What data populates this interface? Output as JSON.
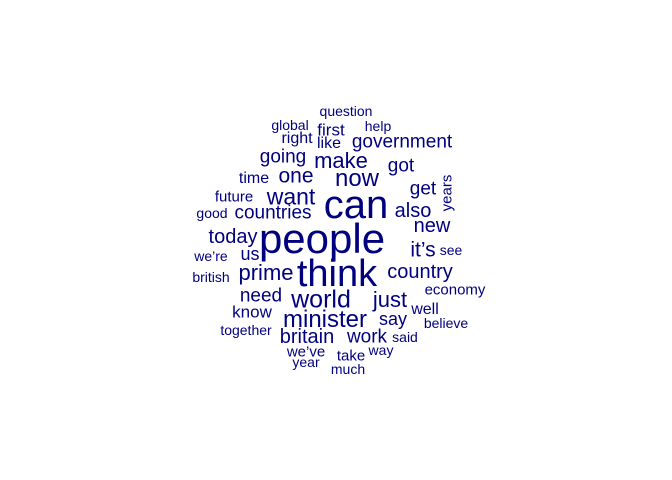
{
  "word_color": "#00007F",
  "words": [
    {
      "text": "question",
      "freq": 2
    },
    {
      "text": "global",
      "freq": 2
    },
    {
      "text": "help",
      "freq": 2
    },
    {
      "text": "first",
      "freq": 3
    },
    {
      "text": "right",
      "freq": 3
    },
    {
      "text": "like",
      "freq": 2
    },
    {
      "text": "government",
      "freq": 4
    },
    {
      "text": "going",
      "freq": 4
    },
    {
      "text": "make",
      "freq": 5
    },
    {
      "text": "got",
      "freq": 4
    },
    {
      "text": "one",
      "freq": 5
    },
    {
      "text": "now",
      "freq": 6
    },
    {
      "text": "time",
      "freq": 3
    },
    {
      "text": "want",
      "freq": 6
    },
    {
      "text": "can",
      "freq": 10
    },
    {
      "text": "get",
      "freq": 4
    },
    {
      "text": "years",
      "freq": 3
    },
    {
      "text": "future",
      "freq": 3
    },
    {
      "text": "also",
      "freq": 4
    },
    {
      "text": "good",
      "freq": 2
    },
    {
      "text": "countries",
      "freq": 4
    },
    {
      "text": "new",
      "freq": 4
    },
    {
      "text": "today",
      "freq": 4
    },
    {
      "text": "people",
      "freq": 12
    },
    {
      "text": "it’s",
      "freq": 5
    },
    {
      "text": "see",
      "freq": 3
    },
    {
      "text": "we’re",
      "freq": 2
    },
    {
      "text": "us",
      "freq": 4
    },
    {
      "text": "prime",
      "freq": 5
    },
    {
      "text": "think",
      "freq": 11
    },
    {
      "text": "country",
      "freq": 4
    },
    {
      "text": "british",
      "freq": 2
    },
    {
      "text": "economy",
      "freq": 3
    },
    {
      "text": "need",
      "freq": 4
    },
    {
      "text": "world",
      "freq": 6
    },
    {
      "text": "just",
      "freq": 5
    },
    {
      "text": "know",
      "freq": 3
    },
    {
      "text": "well",
      "freq": 3
    },
    {
      "text": "minister",
      "freq": 6
    },
    {
      "text": "say",
      "freq": 3
    },
    {
      "text": "together",
      "freq": 2
    },
    {
      "text": "believe",
      "freq": 2
    },
    {
      "text": "britain",
      "freq": 4
    },
    {
      "text": "work",
      "freq": 4
    },
    {
      "text": "said",
      "freq": 2
    },
    {
      "text": "we’ve",
      "freq": 3
    },
    {
      "text": "take",
      "freq": 3
    },
    {
      "text": "way",
      "freq": 2
    },
    {
      "text": "year",
      "freq": 2
    },
    {
      "text": "much",
      "freq": 2
    }
  ]
}
